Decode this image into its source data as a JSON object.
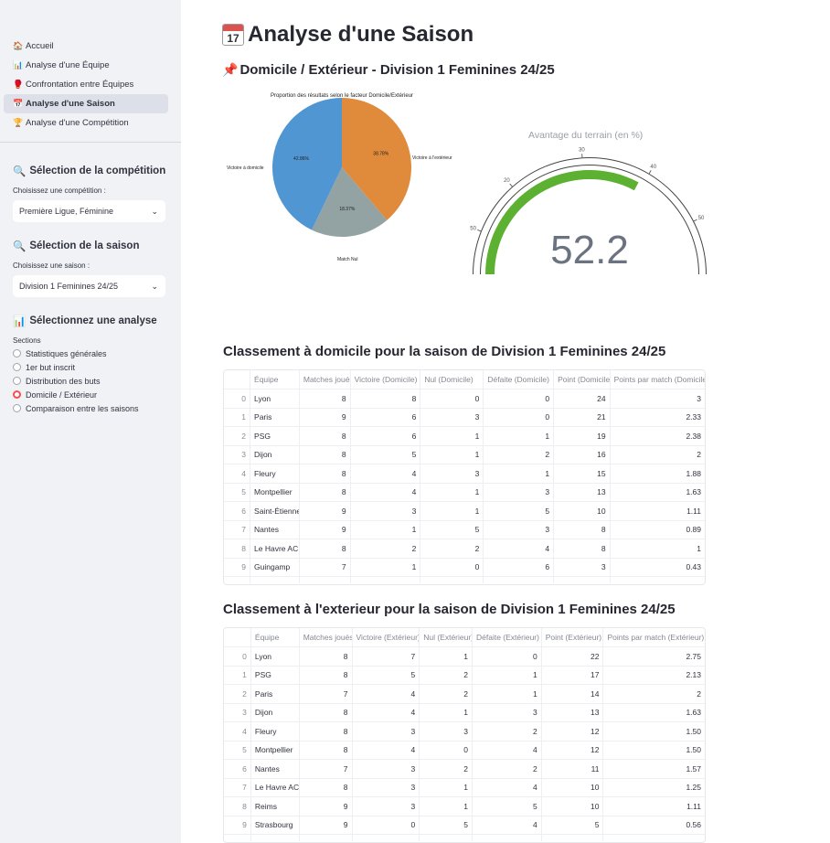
{
  "sidebar": {
    "nav": [
      {
        "icon": "🏠",
        "label": "Accueil"
      },
      {
        "icon": "📊",
        "label": "Analyse d'une Équipe"
      },
      {
        "icon": "🥊",
        "label": "Confrontation entre Équipes"
      },
      {
        "icon": "📅",
        "label": "Analyse d'une Saison"
      },
      {
        "icon": "🏆",
        "label": "Analyse d'une Compétition"
      }
    ],
    "competition": {
      "title": "Sélection de la compétition",
      "label": "Choisissez une compétition :",
      "value": "Première Ligue, Féminine"
    },
    "season": {
      "title": "Sélection de la saison",
      "label": "Choisissez une saison :",
      "value": "Division 1 Feminines 24/25"
    },
    "analysis": {
      "title": "Sélectionnez une analyse",
      "label": "Sections",
      "options": [
        "Statistiques générales",
        "1er but inscrit",
        "Distribution des buts",
        "Domicile / Extérieur",
        "Comparaison entre les saisons"
      ],
      "selected_index": 3
    }
  },
  "page": {
    "title": "Analyse d'une Saison",
    "calendar_day": "17",
    "subtitle": "Domicile / Extérieur - Division 1 Feminines 24/25"
  },
  "pie": {
    "title": "Proportion des résultats selon le facteur Domicile/Extérieur",
    "slices": [
      {
        "label": "Victoire à l'extérieur",
        "value": 38.78,
        "text": "38.78%",
        "color": "#e08a3c"
      },
      {
        "label": "Match Nul",
        "value": 18.37,
        "text": "18.37%",
        "color": "#93a3a3"
      },
      {
        "label": "Victoire à domicile",
        "value": 42.86,
        "text": "42.86%",
        "color": "#5096d2"
      }
    ]
  },
  "gauge": {
    "title": "Avantage du terrain (en %)",
    "value": 52.2,
    "display": "52.2",
    "ticks": [
      "50",
      "20",
      "30",
      "40",
      "50"
    ],
    "bar_color": "#5cb132"
  },
  "home_table": {
    "title": "Classement à domicile pour la saison de Division 1 Feminines 24/25",
    "columns": [
      "Équipe",
      "Matches joués",
      "Victoire (Domicile)",
      "Nul (Domicile)",
      "Défaite (Domicile)",
      "Point (Domicile)",
      "Points par match (Domicile)"
    ],
    "rows": [
      [
        "0",
        "Lyon",
        "8",
        "8",
        "0",
        "0",
        "24",
        "3"
      ],
      [
        "1",
        "Paris",
        "9",
        "6",
        "3",
        "0",
        "21",
        "2.33"
      ],
      [
        "2",
        "PSG",
        "8",
        "6",
        "1",
        "1",
        "19",
        "2.38"
      ],
      [
        "3",
        "Dijon",
        "8",
        "5",
        "1",
        "2",
        "16",
        "2"
      ],
      [
        "4",
        "Fleury",
        "8",
        "4",
        "3",
        "1",
        "15",
        "1.88"
      ],
      [
        "5",
        "Montpellier",
        "8",
        "4",
        "1",
        "3",
        "13",
        "1.63"
      ],
      [
        "6",
        "Saint-Étienne",
        "9",
        "3",
        "1",
        "5",
        "10",
        "1.11"
      ],
      [
        "7",
        "Nantes",
        "9",
        "1",
        "5",
        "3",
        "8",
        "0.89"
      ],
      [
        "8",
        "Le Havre AC",
        "8",
        "2",
        "2",
        "4",
        "8",
        "1"
      ],
      [
        "9",
        "Guingamp",
        "7",
        "1",
        "0",
        "6",
        "3",
        "0.43"
      ]
    ]
  },
  "away_table": {
    "title": "Classement à l'exterieur pour la saison de Division 1 Feminines 24/25",
    "columns": [
      "Équipe",
      "Matches joués",
      "Victoire (Extérieur)",
      "Nul (Extérieur)",
      "Défaite (Extérieur)",
      "Point (Extérieur)",
      "Points par match (Extérieur)"
    ],
    "rows": [
      [
        "0",
        "Lyon",
        "8",
        "7",
        "1",
        "0",
        "22",
        "2.75"
      ],
      [
        "1",
        "PSG",
        "8",
        "5",
        "2",
        "1",
        "17",
        "2.13"
      ],
      [
        "2",
        "Paris",
        "7",
        "4",
        "2",
        "1",
        "14",
        "2"
      ],
      [
        "3",
        "Dijon",
        "8",
        "4",
        "1",
        "3",
        "13",
        "1.63"
      ],
      [
        "4",
        "Fleury",
        "8",
        "3",
        "3",
        "2",
        "12",
        "1.50"
      ],
      [
        "5",
        "Montpellier",
        "8",
        "4",
        "0",
        "4",
        "12",
        "1.50"
      ],
      [
        "6",
        "Nantes",
        "7",
        "3",
        "2",
        "2",
        "11",
        "1.57"
      ],
      [
        "7",
        "Le Havre AC",
        "8",
        "3",
        "1",
        "4",
        "10",
        "1.25"
      ],
      [
        "8",
        "Reims",
        "9",
        "3",
        "1",
        "5",
        "10",
        "1.11"
      ],
      [
        "9",
        "Strasbourg",
        "9",
        "0",
        "5",
        "4",
        "5",
        "0.56"
      ]
    ]
  }
}
